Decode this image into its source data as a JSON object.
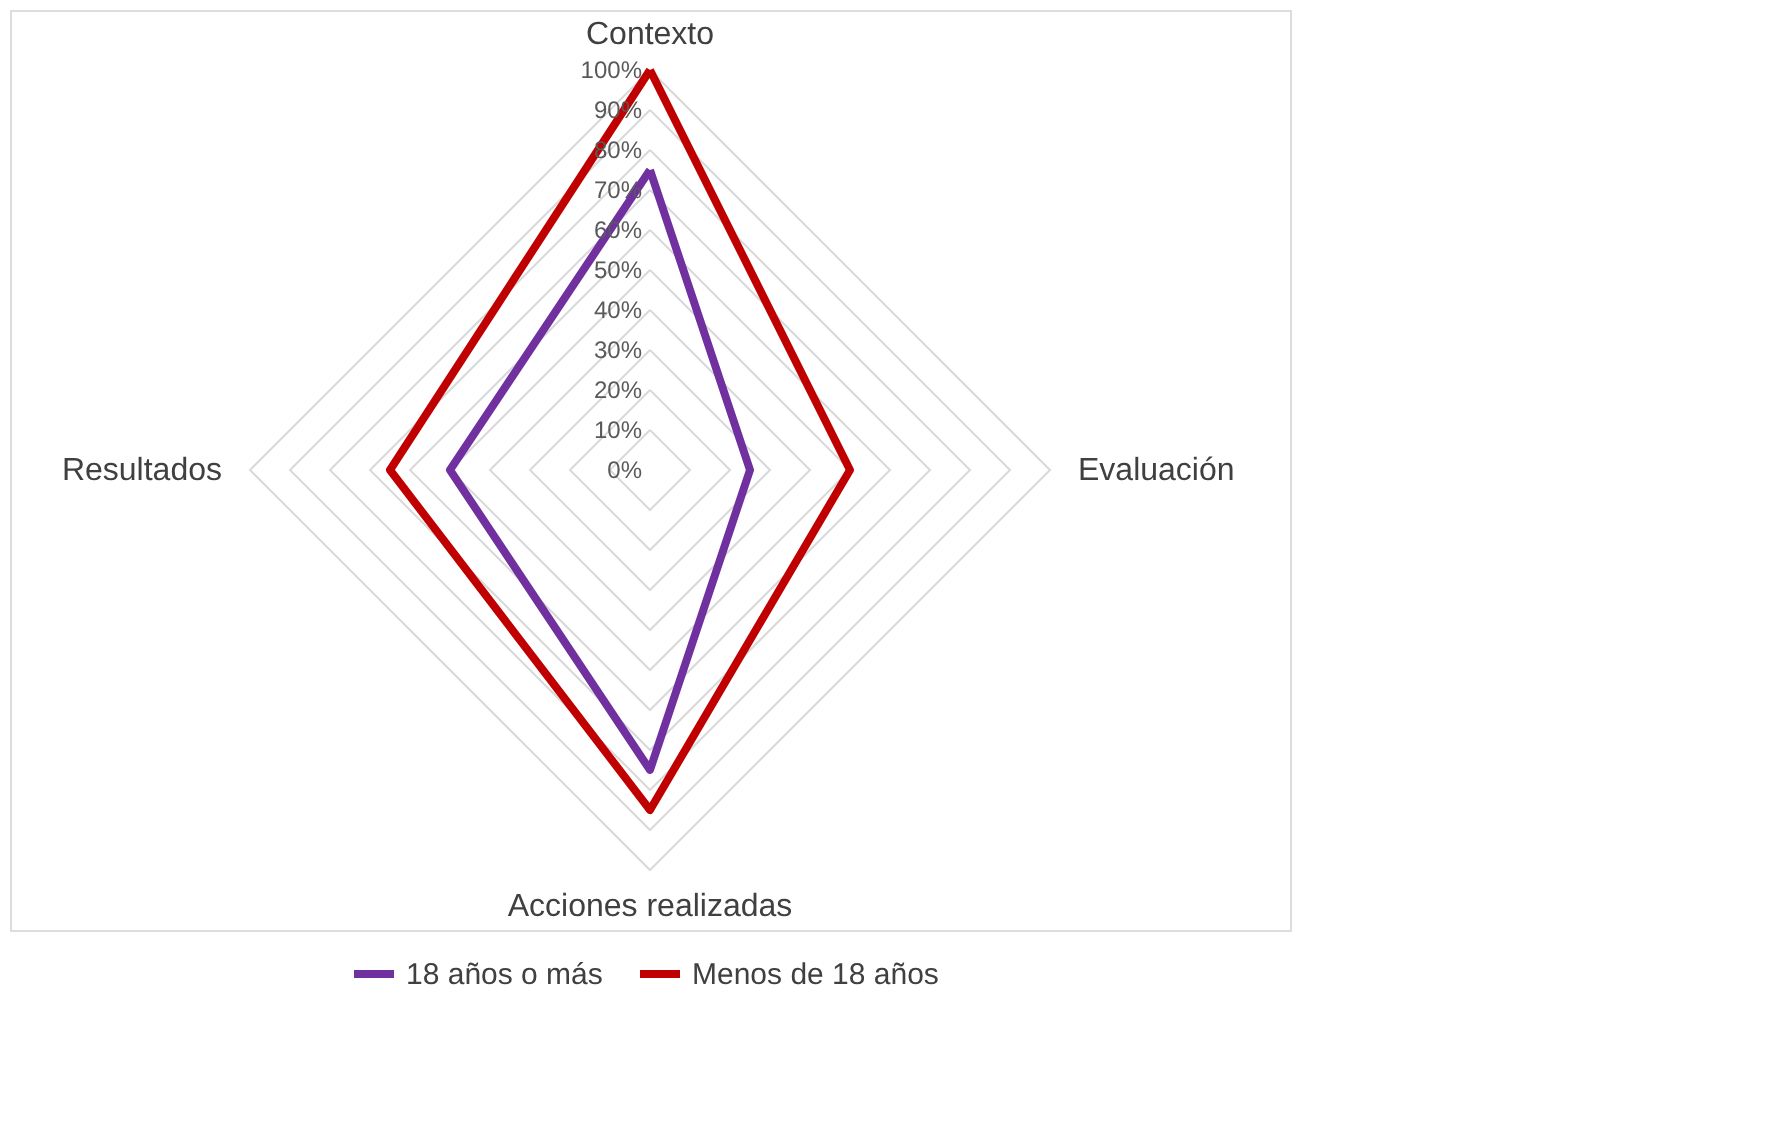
{
  "chart_data": {
    "type": "radar",
    "categories": [
      "Contexto",
      "Evaluación",
      "Acciones realizadas",
      "Resultados"
    ],
    "ylim": [
      0,
      100
    ],
    "yticks": [
      {
        "value": 0,
        "label": "0%"
      },
      {
        "value": 10,
        "label": "10%"
      },
      {
        "value": 20,
        "label": "20%"
      },
      {
        "value": 30,
        "label": "30%"
      },
      {
        "value": 40,
        "label": "40%"
      },
      {
        "value": 50,
        "label": "50%"
      },
      {
        "value": 60,
        "label": "60%"
      },
      {
        "value": 70,
        "label": "70%"
      },
      {
        "value": 80,
        "label": "80%"
      },
      {
        "value": 90,
        "label": "90%"
      },
      {
        "value": 100,
        "label": "100%"
      }
    ],
    "grid": true,
    "legend": "bottom",
    "series": [
      {
        "name": "18 años o más",
        "color": "#7030a0",
        "values": [
          75,
          25,
          75,
          50
        ]
      },
      {
        "name": "Menos de 18 años",
        "color": "#c00000",
        "values": [
          100,
          50,
          85,
          65
        ]
      }
    ]
  }
}
